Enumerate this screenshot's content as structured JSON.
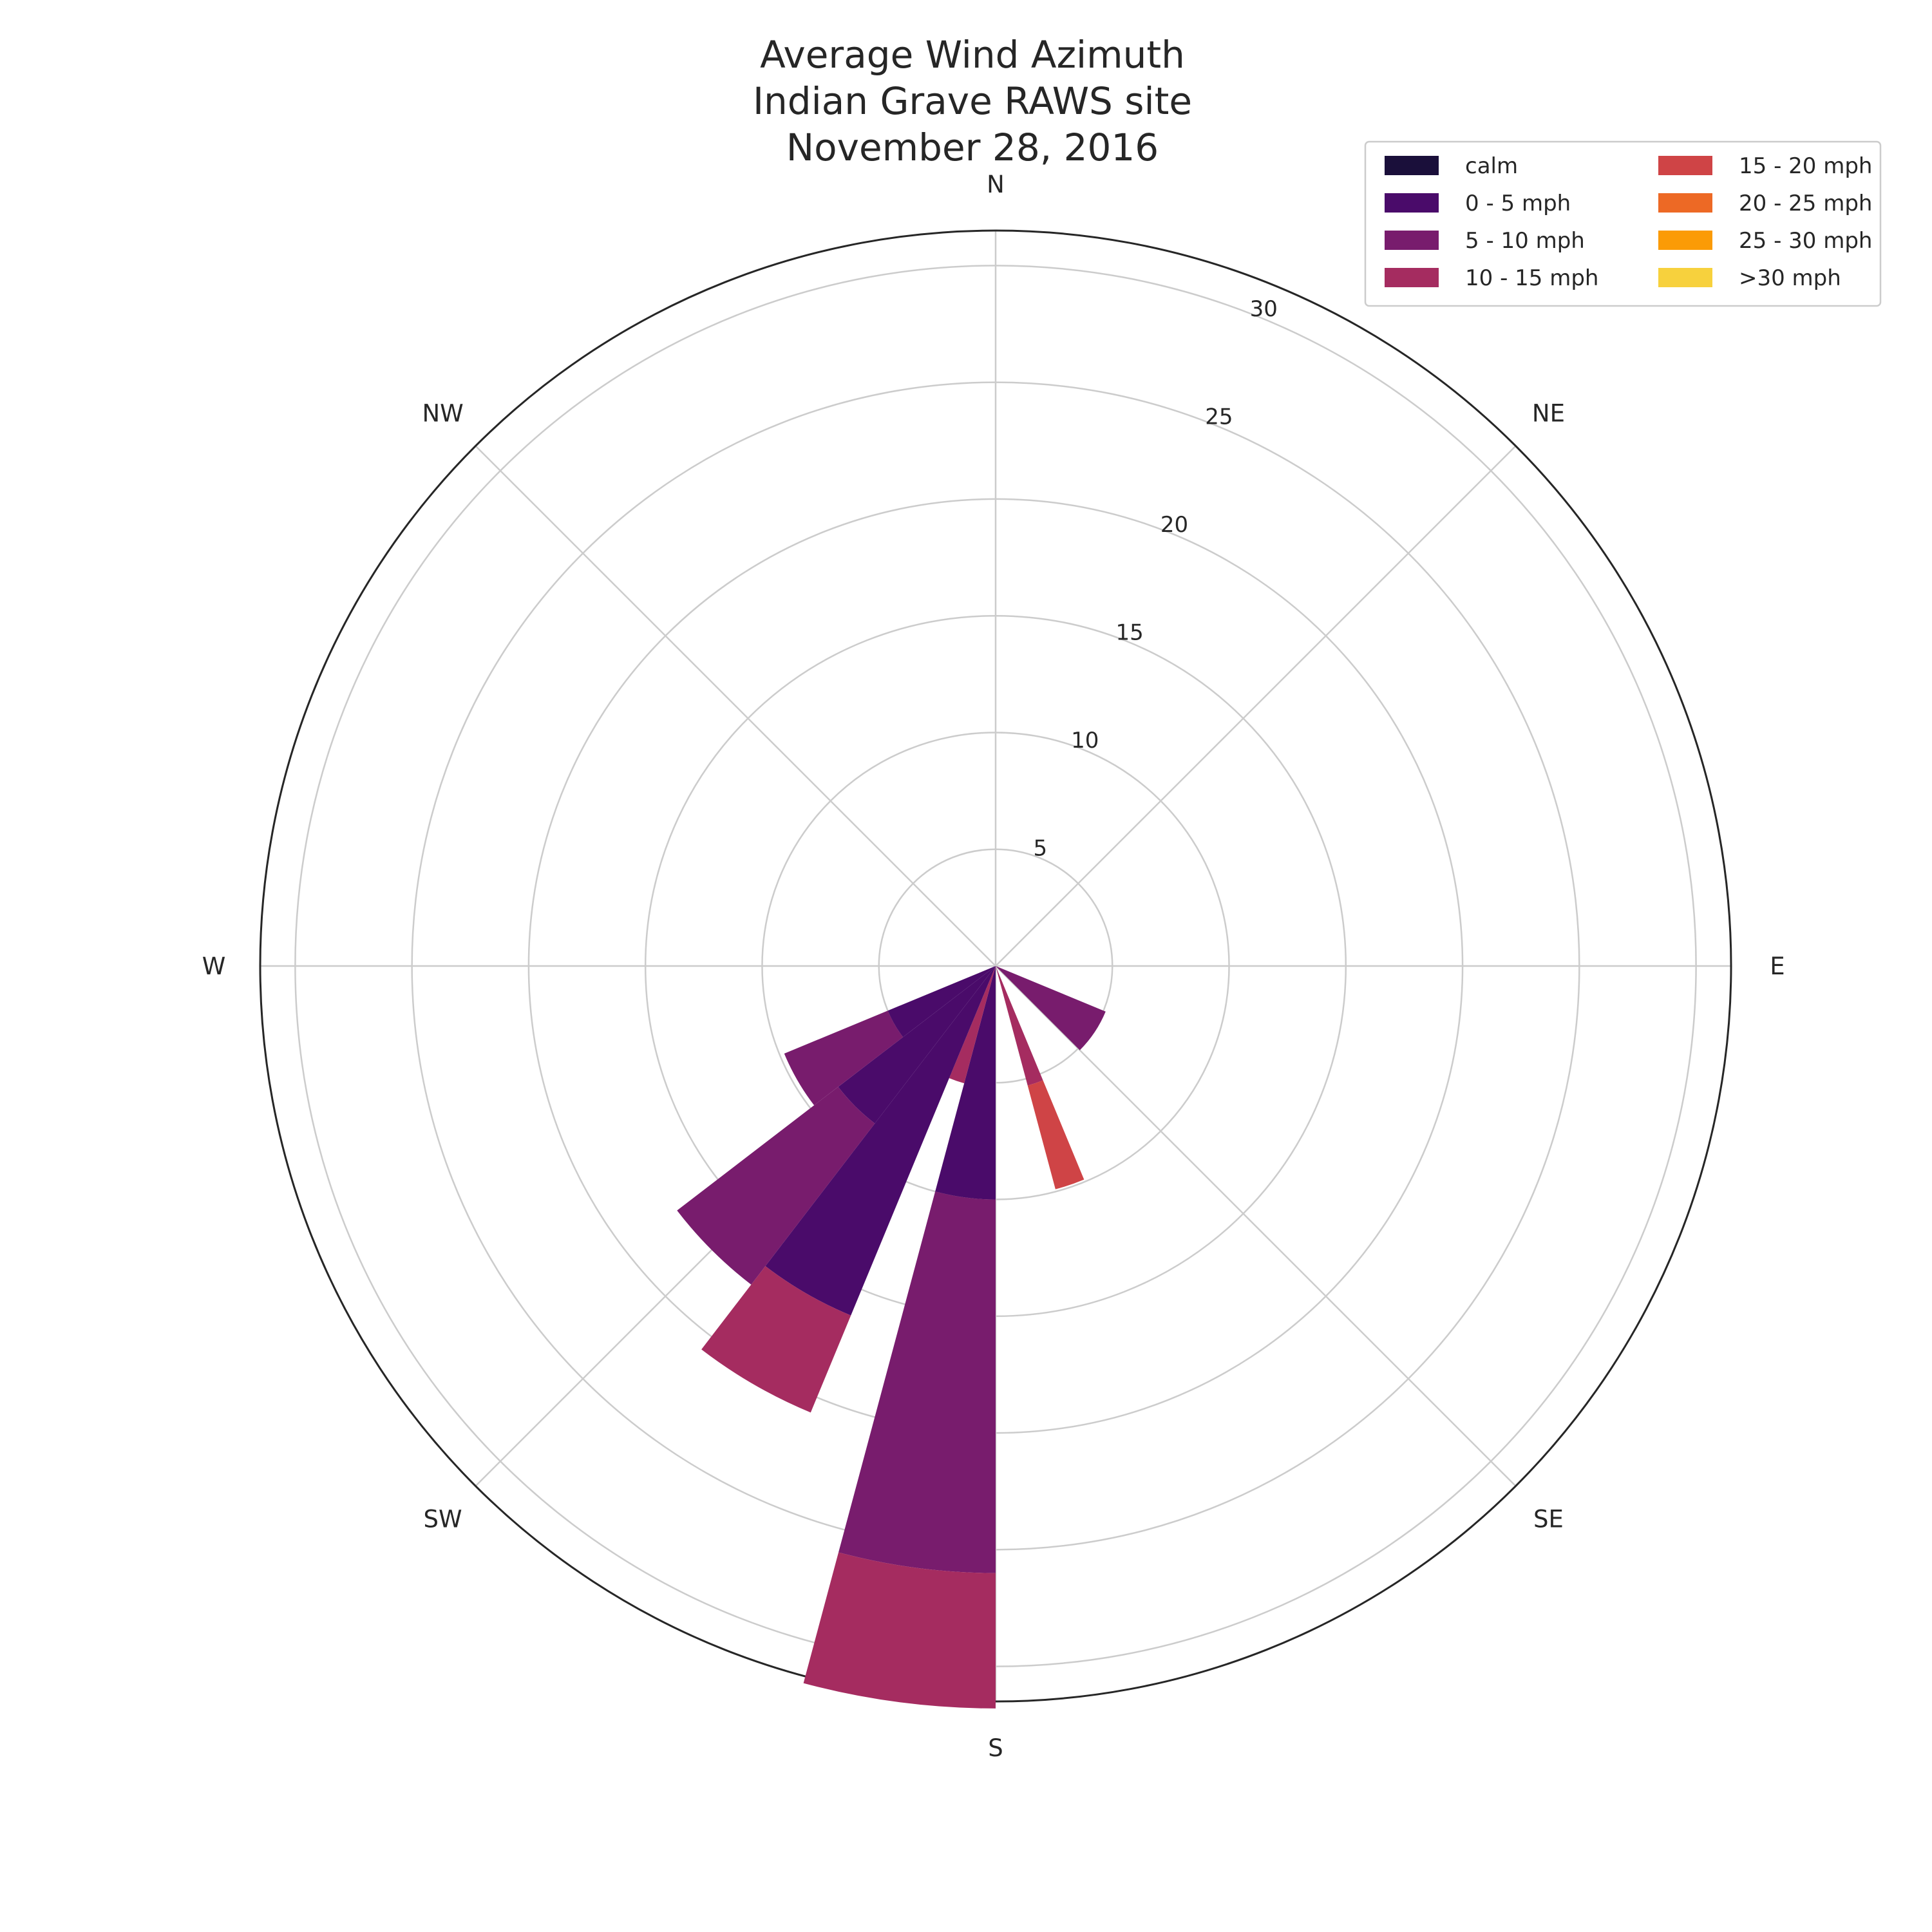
{
  "chart_data": {
    "type": "windrose",
    "title_lines": [
      "Average Wind Azimuth",
      "Indian Grave RAWS site",
      "November 28, 2016"
    ],
    "directions": [
      "N",
      "NE",
      "E",
      "SE",
      "S",
      "SW",
      "W",
      "NW"
    ],
    "radial_ticks": [
      5,
      10,
      15,
      20,
      25,
      30
    ],
    "rmax": 31.5,
    "grid": true,
    "legend_position": "top-right",
    "legend": [
      {
        "label": "calm",
        "color": "#1a0f3a"
      },
      {
        "label": "0 - 5 mph",
        "color": "#4a0b6a"
      },
      {
        "label": "5 - 10 mph",
        "color": "#781c6d"
      },
      {
        "label": "10 - 15 mph",
        "color": "#a52c60"
      },
      {
        "label": "15 - 20 mph",
        "color": "#cf4446"
      },
      {
        "label": "20 - 25 mph",
        "color": "#ed6925"
      },
      {
        "label": "25 - 30 mph",
        "color": "#fb9b06"
      },
      {
        "label": ">30 mph",
        "color": "#f7d13d"
      }
    ],
    "bars": [
      {
        "start_deg": 180,
        "end_deg": 195,
        "values": [
          0,
          10,
          16,
          5.8,
          0,
          0,
          0,
          0
        ]
      },
      {
        "start_deg": 165,
        "end_deg": 180,
        "values": [
          0,
          0,
          0,
          0,
          0,
          0,
          0,
          0
        ]
      },
      {
        "start_deg": 157.5,
        "end_deg": 165,
        "values": [
          0,
          0,
          0,
          5.3,
          4.6,
          0,
          0,
          0
        ]
      },
      {
        "start_deg": 112.5,
        "end_deg": 135,
        "values": [
          0,
          0,
          5.1,
          0,
          0,
          0,
          0,
          0
        ]
      },
      {
        "start_deg": 195,
        "end_deg": 202.5,
        "values": [
          0,
          0,
          0,
          5.2,
          0,
          0,
          0,
          0
        ]
      },
      {
        "start_deg": 202.5,
        "end_deg": 217.5,
        "values": [
          0,
          16.2,
          0,
          4.5,
          0,
          0,
          0,
          0
        ]
      },
      {
        "start_deg": 217.5,
        "end_deg": 232.5,
        "values": [
          0,
          8.5,
          8.7,
          0,
          0,
          0,
          0,
          0
        ]
      },
      {
        "start_deg": 232.5,
        "end_deg": 247.5,
        "values": [
          0,
          5,
          4.8,
          0,
          0,
          0,
          0,
          0
        ]
      }
    ]
  }
}
